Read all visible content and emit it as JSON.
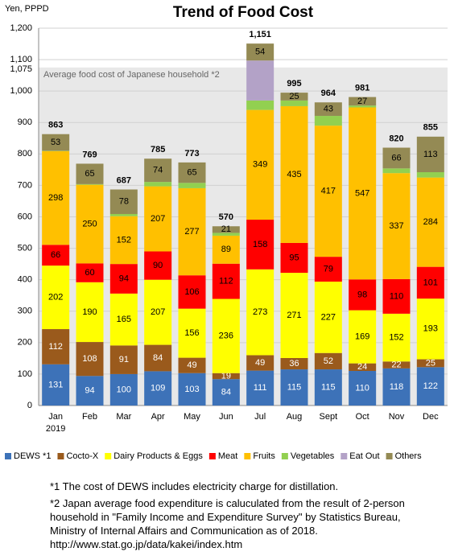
{
  "chart_data": {
    "type": "stacked-bar",
    "title": "Trend of Food Cost",
    "y_label": "Yen, PPPD",
    "categories": [
      "Jan",
      "Feb",
      "Mar",
      "Apr",
      "May",
      "Jun",
      "Jul",
      "Aug",
      "Sept",
      "Oct",
      "Nov",
      "Dec"
    ],
    "first_category_year": "2019",
    "ylim": [
      0,
      1200
    ],
    "yticks": [
      0,
      100,
      200,
      300,
      400,
      500,
      600,
      700,
      800,
      900,
      {
        "value": 1000,
        "label": "1,000"
      },
      {
        "value": 1100,
        "label": "1,100"
      },
      {
        "value": 1200,
        "label": "1,200"
      }
    ],
    "grid": true,
    "reference": {
      "value": 1075,
      "label": "1,075",
      "text": "Average food cost of Japanese household *2",
      "color": "#e8e8e8"
    },
    "series": [
      {
        "name": "DEWS *1",
        "color": "#3d72b8",
        "label_color": "#ffffff",
        "show_labels": true,
        "values": [
          131,
          94,
          100,
          109,
          103,
          84,
          111,
          115,
          115,
          110,
          118,
          122
        ]
      },
      {
        "name": "Cocto-X",
        "color": "#9a5a1c",
        "label_color": "#ffffff",
        "show_labels": true,
        "values": [
          112,
          108,
          91,
          84,
          49,
          19,
          49,
          36,
          52,
          24,
          22,
          25
        ]
      },
      {
        "name": "Dairy Products & Eggs",
        "color": "#ffff00",
        "label_color": "#000000",
        "show_labels": true,
        "values": [
          202,
          190,
          165,
          207,
          156,
          236,
          273,
          271,
          227,
          169,
          152,
          193
        ]
      },
      {
        "name": "Meat",
        "color": "#ff0000",
        "label_color": "#000000",
        "show_labels": true,
        "values": [
          66,
          60,
          94,
          90,
          106,
          112,
          158,
          95,
          79,
          98,
          110,
          101
        ]
      },
      {
        "name": "Fruits",
        "color": "#ffc000",
        "label_color": "#000000",
        "show_labels": true,
        "values": [
          298,
          250,
          152,
          207,
          277,
          89,
          349,
          435,
          417,
          547,
          337,
          284
        ]
      },
      {
        "name": "Vegetables",
        "color": "#92d050",
        "label_color": "#000000",
        "show_labels": false,
        "values": [
          1,
          2,
          7,
          14,
          17,
          9,
          30,
          18,
          31,
          6,
          15,
          17
        ]
      },
      {
        "name": "Eat Out",
        "color": "#b3a2c7",
        "label_color": "#000000",
        "show_labels": false,
        "values": [
          0,
          0,
          0,
          0,
          0,
          0,
          127,
          0,
          0,
          0,
          0,
          0
        ]
      },
      {
        "name": "Others",
        "color": "#948a54",
        "label_color": "#000000",
        "show_labels": true,
        "values": [
          53,
          65,
          78,
          74,
          65,
          21,
          54,
          25,
          43,
          27,
          66,
          113
        ]
      }
    ],
    "totals": [
      863,
      769,
      687,
      785,
      773,
      570,
      1151,
      995,
      964,
      981,
      820,
      855
    ],
    "total_labels": [
      "863",
      "769",
      "687",
      "785",
      "773",
      "570",
      "1,151",
      "995",
      "964",
      "981",
      "820",
      "855"
    ],
    "notes": [
      "*1 The cost of DEWS includes electricity charge for distillation.",
      "*2 Japan average food expenditure is caluculated from the result of 2-person household in \"Family Income and Expenditure Survey\" by Statistics Bureau, Ministry of Internal Affairs and Communication as of 2018."
    ],
    "source_url": "http://www.stat.go.jp/data/kakei/index.htm"
  }
}
